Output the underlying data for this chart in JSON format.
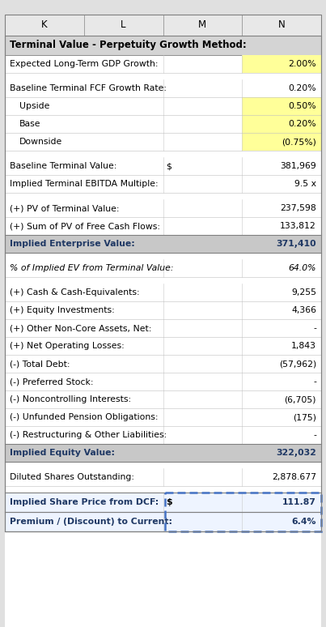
{
  "col_headers": [
    "K",
    "L",
    "M",
    "N"
  ],
  "title_text": "Terminal Value - Perpetuity Growth Method:",
  "rows": [
    {
      "label": "Expected Long-Term GDP Growth:",
      "col_m": "",
      "col_n": "2.00%",
      "bold": false,
      "italic": false,
      "indent": 0,
      "n_bg": "#FFFF99",
      "spacer": false
    },
    {
      "spacer": true
    },
    {
      "label": "Baseline Terminal FCF Growth Rate:",
      "col_m": "",
      "col_n": "0.20%",
      "bold": false,
      "italic": false,
      "indent": 0,
      "n_bg": null,
      "spacer": false
    },
    {
      "label": "Upside",
      "col_m": "",
      "col_n": "0.50%",
      "bold": false,
      "italic": false,
      "indent": 1,
      "n_bg": "#FFFF99",
      "spacer": false
    },
    {
      "label": "Base",
      "col_m": "",
      "col_n": "0.20%",
      "bold": false,
      "italic": false,
      "indent": 1,
      "n_bg": "#FFFF99",
      "spacer": false
    },
    {
      "label": "Downside",
      "col_m": "",
      "col_n": "(0.75%)",
      "bold": false,
      "italic": false,
      "indent": 1,
      "n_bg": "#FFFF99",
      "spacer": false
    },
    {
      "spacer": true
    },
    {
      "label": "Baseline Terminal Value:",
      "col_m": "$",
      "col_n": "381,969",
      "bold": false,
      "italic": false,
      "indent": 0,
      "n_bg": null,
      "spacer": false
    },
    {
      "label": "Implied Terminal EBITDA Multiple:",
      "col_m": "",
      "col_n": "9.5 x",
      "bold": false,
      "italic": false,
      "indent": 0,
      "n_bg": null,
      "spacer": false
    },
    {
      "spacer": true
    },
    {
      "label": "(+) PV of Terminal Value:",
      "col_m": "",
      "col_n": "237,598",
      "bold": false,
      "italic": false,
      "indent": 0,
      "n_bg": null,
      "spacer": false
    },
    {
      "label": "(+) Sum of PV of Free Cash Flows:",
      "col_m": "",
      "col_n": "133,812",
      "bold": false,
      "italic": false,
      "indent": 0,
      "n_bg": null,
      "spacer": false
    },
    {
      "label": "Implied Enterprise Value:",
      "col_m": "",
      "col_n": "371,410",
      "bold": true,
      "italic": false,
      "indent": 0,
      "n_bg": "#BFBFBF",
      "row_bg": "#BFBFBF",
      "spacer": false
    },
    {
      "spacer": true
    },
    {
      "label": "% of Implied EV from Terminal Value:",
      "col_m": "",
      "col_n": "64.0%",
      "bold": false,
      "italic": true,
      "indent": 0,
      "n_bg": null,
      "spacer": false
    },
    {
      "spacer": true
    },
    {
      "label": "(+) Cash & Cash-Equivalents:",
      "col_m": "",
      "col_n": "9,255",
      "bold": false,
      "italic": false,
      "indent": 0,
      "n_bg": null,
      "spacer": false
    },
    {
      "label": "(+) Equity Investments:",
      "col_m": "",
      "col_n": "4,366",
      "bold": false,
      "italic": false,
      "indent": 0,
      "n_bg": null,
      "spacer": false
    },
    {
      "label": "(+) Other Non-Core Assets, Net:",
      "col_m": "",
      "col_n": "-",
      "bold": false,
      "italic": false,
      "indent": 0,
      "n_bg": null,
      "spacer": false
    },
    {
      "label": "(+) Net Operating Losses:",
      "col_m": "",
      "col_n": "1,843",
      "bold": false,
      "italic": false,
      "indent": 0,
      "n_bg": null,
      "spacer": false
    },
    {
      "label": "(-) Total Debt:",
      "col_m": "",
      "col_n": "(57,962)",
      "bold": false,
      "italic": false,
      "indent": 0,
      "n_bg": null,
      "spacer": false
    },
    {
      "label": "(-) Preferred Stock:",
      "col_m": "",
      "col_n": "-",
      "bold": false,
      "italic": false,
      "indent": 0,
      "n_bg": null,
      "spacer": false
    },
    {
      "label": "(-) Noncontrolling Interests:",
      "col_m": "",
      "col_n": "(6,705)",
      "bold": false,
      "italic": false,
      "indent": 0,
      "n_bg": null,
      "spacer": false
    },
    {
      "label": "(-) Unfunded Pension Obligations:",
      "col_m": "",
      "col_n": "(175)",
      "bold": false,
      "italic": false,
      "indent": 0,
      "n_bg": null,
      "spacer": false
    },
    {
      "label": "(-) Restructuring & Other Liabilities:",
      "col_m": "",
      "col_n": "-",
      "bold": false,
      "italic": false,
      "indent": 0,
      "n_bg": null,
      "spacer": false
    },
    {
      "label": "Implied Equity Value:",
      "col_m": "",
      "col_n": "322,032",
      "bold": true,
      "italic": false,
      "indent": 0,
      "n_bg": "#BFBFBF",
      "row_bg": "#BFBFBF",
      "spacer": false
    },
    {
      "spacer": true
    },
    {
      "label": "Diluted Shares Outstanding:",
      "col_m": "",
      "col_n": "2,878.677",
      "bold": false,
      "italic": false,
      "indent": 0,
      "n_bg": null,
      "spacer": false
    },
    {
      "spacer": true
    },
    {
      "label": "Implied Share Price from DCF:",
      "col_m": "$",
      "col_n": "111.87",
      "bold": true,
      "italic": false,
      "indent": 0,
      "n_bg": null,
      "row_bg": "#DDEEFF",
      "spacer": false,
      "bottom_row": true
    },
    {
      "label": "Premium / (Discount) to Current:",
      "col_m": "",
      "col_n": "6.4%",
      "bold": true,
      "italic": false,
      "indent": 0,
      "n_bg": null,
      "row_bg": "#DDEEFF",
      "spacer": false,
      "bottom_row": true
    }
  ],
  "font_size": 7.8,
  "title_font_size": 8.5,
  "col_header_font_size": 8.5
}
